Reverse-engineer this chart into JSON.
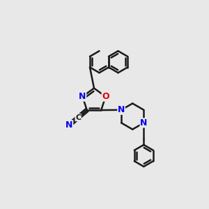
{
  "bg_color": "#e8e8e8",
  "bond_color": "#1a1a1a",
  "bond_width": 1.8,
  "atom_colors": {
    "N": "#0000ee",
    "O": "#dd0000",
    "C": "#1a1a1a"
  },
  "font_size_atom": 9,
  "figsize": [
    3.0,
    3.0
  ],
  "dpi": 100,
  "xlim": [
    0,
    10
  ],
  "ylim": [
    0,
    10
  ]
}
